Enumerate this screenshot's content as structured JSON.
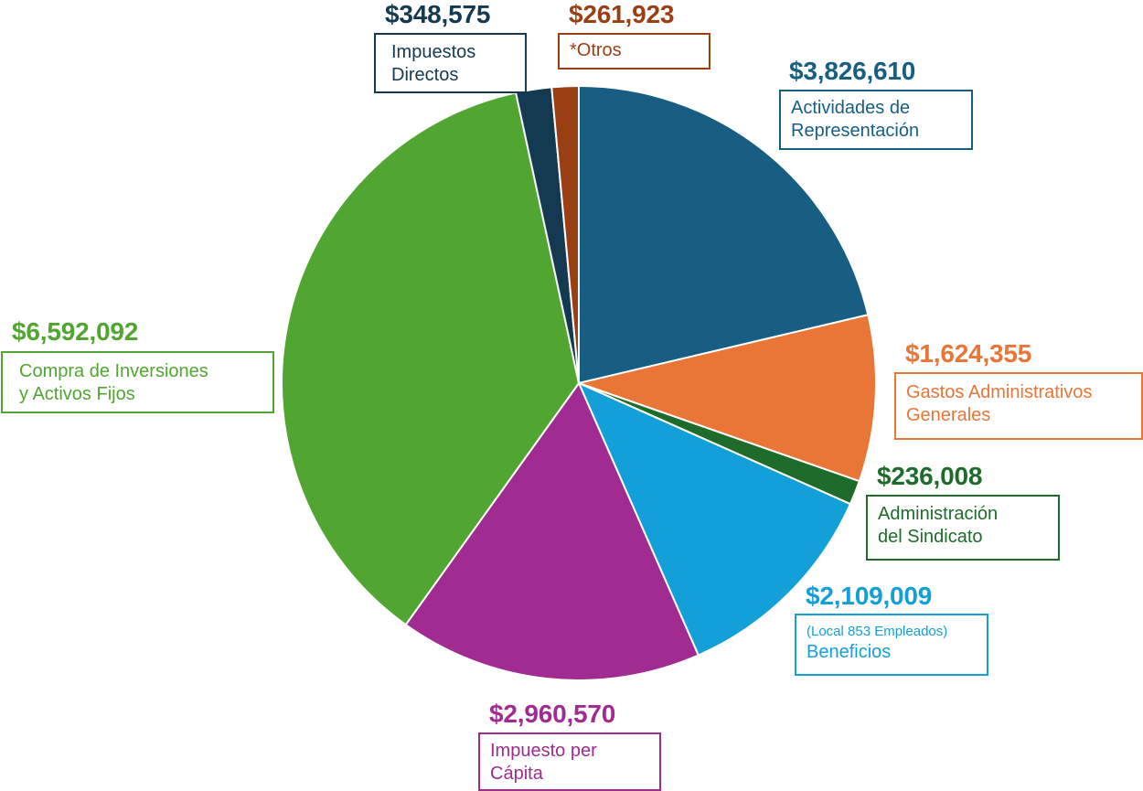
{
  "chart_data": {
    "type": "pie",
    "title": "",
    "slices": [
      {
        "label": "Actividades de Representación",
        "value": 3826610,
        "value_text": "$3,826,610",
        "color": "#175e82",
        "label_lines": [
          "Actividades de",
          "Representación"
        ]
      },
      {
        "label": "Gastos Administrativos Generales",
        "value": 1624355,
        "value_text": "$1,624,355",
        "color": "#e97536",
        "label_lines": [
          "Gastos Administrativos",
          "Generales"
        ]
      },
      {
        "label": "Administración del Sindicato",
        "value": 236008,
        "value_text": "$236,008",
        "color": "#1e6b2b",
        "label_lines": [
          "Administración",
          "del Sindicato"
        ]
      },
      {
        "label": "(Local 853 Empleados) Beneficios",
        "value": 2109009,
        "value_text": "$2,109,009",
        "color": "#139fd7",
        "label_note": "(Local 853 Empleados)",
        "label_lines": [
          "Beneficios"
        ]
      },
      {
        "label": "Impuesto per Cápita",
        "value": 2960570,
        "value_text": "$2,960,570",
        "color": "#a02b91",
        "label_lines": [
          "Impuesto per",
          "Cápita"
        ]
      },
      {
        "label": "Compra de Inversiones y Activos Fijos",
        "value": 6592092,
        "value_text": "$6,592,092",
        "color": "#50a630",
        "label_lines": [
          "Compra de Inversiones",
          "y Activos Fijos"
        ]
      },
      {
        "label": "Impuestos Directos",
        "value": 348575,
        "value_text": "$348,575",
        "color": "#143a52",
        "label_lines": [
          "Impuestos",
          "Directos"
        ]
      },
      {
        "label": "*Otros",
        "value": 261923,
        "value_text": "$261,923",
        "color": "#9a3f14",
        "label_lines": [
          "*Otros"
        ]
      }
    ]
  }
}
